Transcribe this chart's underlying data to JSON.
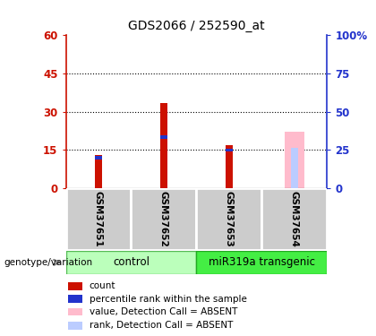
{
  "title": "GDS2066 / 252590_at",
  "samples": [
    "GSM37651",
    "GSM37652",
    "GSM37653",
    "GSM37654"
  ],
  "ylim_left": [
    0,
    60
  ],
  "ylim_right": [
    0,
    100
  ],
  "yticks_left": [
    0,
    15,
    30,
    45,
    60
  ],
  "yticks_right": [
    0,
    25,
    50,
    75,
    100
  ],
  "ytick_labels_left": [
    "0",
    "15",
    "30",
    "45",
    "60"
  ],
  "ytick_labels_right": [
    "0",
    "25",
    "50",
    "75",
    "100%"
  ],
  "red_color": "#cc1100",
  "blue_color": "#2233cc",
  "pink_color": "#ffbbcc",
  "lightblue_color": "#bbccff",
  "count_values": [
    13.0,
    33.5,
    17.0,
    null
  ],
  "rank_values": [
    12.0,
    20.0,
    15.0,
    null
  ],
  "absent_value_values": [
    null,
    null,
    null,
    22.0
  ],
  "absent_rank_values": [
    null,
    null,
    null,
    16.0
  ],
  "legend_labels": [
    "count",
    "percentile rank within the sample",
    "value, Detection Call = ABSENT",
    "rank, Detection Call = ABSENT"
  ],
  "left_axis_color": "#cc1100",
  "right_axis_color": "#2233cc",
  "control_color": "#bbffbb",
  "transgenic_color": "#44ee44",
  "label_bg": "#cccccc",
  "genotype_label": "genotype/variation"
}
